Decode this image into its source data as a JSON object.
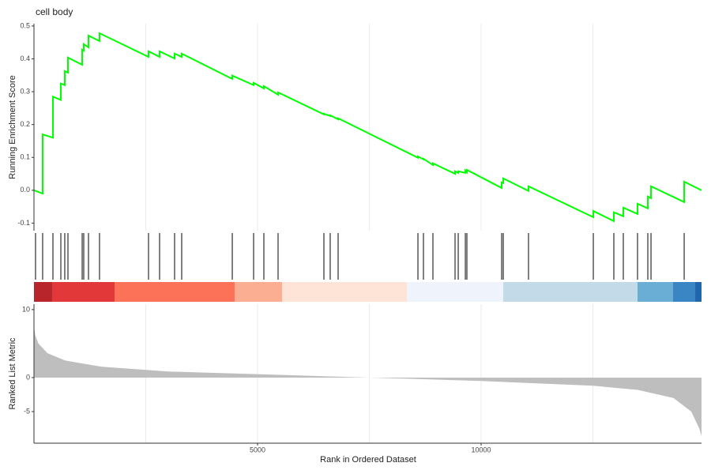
{
  "chart_data": [
    {
      "type": "line",
      "title": "cell body",
      "y_label": "Running Enrichment Score",
      "color": "#00ff00",
      "x": [
        0,
        194,
        194,
        424,
        424,
        601,
        601,
        689,
        689,
        760,
        760,
        1078,
        1078,
        1113,
        1113,
        1219,
        1219,
        1466,
        1466,
        2562,
        2562,
        2809,
        2809,
        3145,
        3145,
        3304,
        3304,
        4435,
        4435,
        4912,
        4912,
        5141,
        5141,
        5459,
        5459,
        6484,
        6484,
        6625,
        6625,
        6802,
        6802,
        8587,
        8587,
        8710,
        8710,
        8922,
        8922,
        9417,
        9417,
        9488,
        9488,
        9647,
        9647,
        9682,
        9682,
        10459,
        10459,
        10495,
        10495,
        11060,
        11060,
        12509,
        12509,
        12968,
        12968,
        13180,
        13180,
        13498,
        13498,
        13728,
        13728,
        13799,
        13799,
        14541,
        14541,
        14929
      ],
      "values": [
        0,
        -0.01,
        0.17,
        0.16,
        0.285,
        0.275,
        0.325,
        0.32,
        0.363,
        0.358,
        0.404,
        0.382,
        0.428,
        0.425,
        0.445,
        0.435,
        0.471,
        0.454,
        0.478,
        0.406,
        0.423,
        0.406,
        0.423,
        0.401,
        0.416,
        0.406,
        0.416,
        0.339,
        0.349,
        0.32,
        0.327,
        0.31,
        0.317,
        0.291,
        0.298,
        0.231,
        0.233,
        0.226,
        0.228,
        0.216,
        0.219,
        0.099,
        0.103,
        0.094,
        0.096,
        0.077,
        0.082,
        0.05,
        0.058,
        0.053,
        0.058,
        0.053,
        0.06,
        0.055,
        0.062,
        0.007,
        0.024,
        0.022,
        0.036,
        -0.002,
        0.012,
        -0.082,
        -0.063,
        -0.094,
        -0.067,
        -0.079,
        -0.053,
        -0.072,
        -0.041,
        -0.055,
        -0.019,
        -0.024,
        0.012,
        -0.036,
        0.026,
        0
      ],
      "xlim": [
        0,
        14929
      ],
      "ylim": [
        -0.123,
        0.507
      ],
      "yticks": [
        0.5,
        0.4,
        0.3,
        0.2,
        0.1,
        {
          "value": 0,
          "label": "0.0"
        },
        -0.1
      ],
      "xgrid": [
        2500,
        5000,
        7500,
        10000,
        12500
      ],
      "hits": [
        35,
        194,
        424,
        601,
        689,
        760,
        1078,
        1113,
        1219,
        1466,
        2562,
        2809,
        3145,
        3304,
        4435,
        4912,
        5141,
        5459,
        6484,
        6625,
        6802,
        8587,
        8710,
        8922,
        9417,
        9488,
        9647,
        9682,
        10459,
        10495,
        11060,
        12509,
        12968,
        13180,
        13498,
        13728,
        13799,
        14541
      ],
      "band": {
        "bins": [
          0,
          406,
          1802,
          4488,
          5548,
          8339,
          10495,
          13498,
          14293,
          14788,
          14929
        ],
        "colors": [
          "#b8262c",
          "#e3383a",
          "#fb7258",
          "#fcae93",
          "#fee3d7",
          "#eef3fc",
          "#c3dbe9",
          "#6aaed6",
          "#3a85c4",
          "#2166ac"
        ]
      }
    },
    {
      "type": "area",
      "x_label": "Rank in Ordered Dataset",
      "y_label": "Ranked List Metric",
      "color": "#bebebe",
      "x": [
        0,
        30,
        100,
        300,
        700,
        1500,
        3000,
        5000,
        7500,
        10000,
        12500,
        13500,
        14300,
        14700,
        14880,
        14929
      ],
      "values": [
        7.5,
        6.2,
        5,
        3.6,
        2.5,
        1.6,
        0.9,
        0.5,
        0,
        -0.5,
        -1.2,
        -1.8,
        -3,
        -5,
        -7.5,
        -8.6
      ],
      "xlim": [
        0,
        14929
      ],
      "ylim": [
        -9.65,
        10.8
      ],
      "yticks": [
        10,
        0,
        -5
      ],
      "xticks": [
        5000,
        10000
      ],
      "xgrid": [
        2500,
        7500,
        12500
      ]
    }
  ]
}
